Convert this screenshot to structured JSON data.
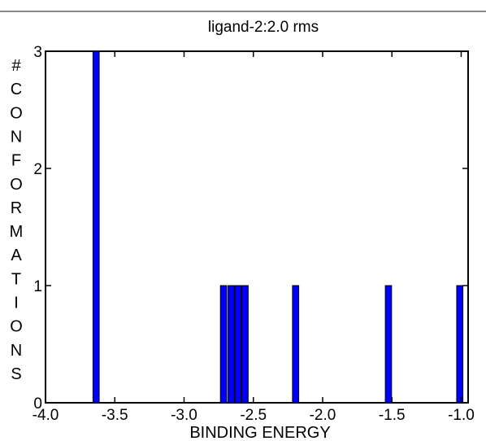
{
  "chart_data": {
    "type": "bar",
    "title": "ligand-2:2.0 rms",
    "xlabel": "BINDING ENERGY",
    "ylabel": "#CONFORMATIONS",
    "xlim": [
      -4.0,
      -0.95
    ],
    "ylim": [
      0,
      3
    ],
    "xticks": [
      -4.0,
      -3.5,
      -3.0,
      -2.5,
      -2.0,
      -1.5,
      -1.0
    ],
    "xtick_labels": [
      "-4.0",
      "-3.5",
      "-3.0",
      "-2.5",
      "-2.0",
      "-1.5",
      "-1.0"
    ],
    "yticks": [
      0,
      1,
      2,
      3
    ],
    "ytick_labels": [
      "0",
      "1",
      "2",
      "3"
    ],
    "bin_width": 0.045,
    "grid": false,
    "bar_color": "#0000ff",
    "bars": [
      {
        "x": -3.635,
        "count": 3
      },
      {
        "x": -2.715,
        "count": 1
      },
      {
        "x": -2.66,
        "count": 1
      },
      {
        "x": -2.61,
        "count": 1
      },
      {
        "x": -2.56,
        "count": 1
      },
      {
        "x": -2.195,
        "count": 1
      },
      {
        "x": -1.525,
        "count": 1
      },
      {
        "x": -1.01,
        "count": 1
      }
    ]
  }
}
